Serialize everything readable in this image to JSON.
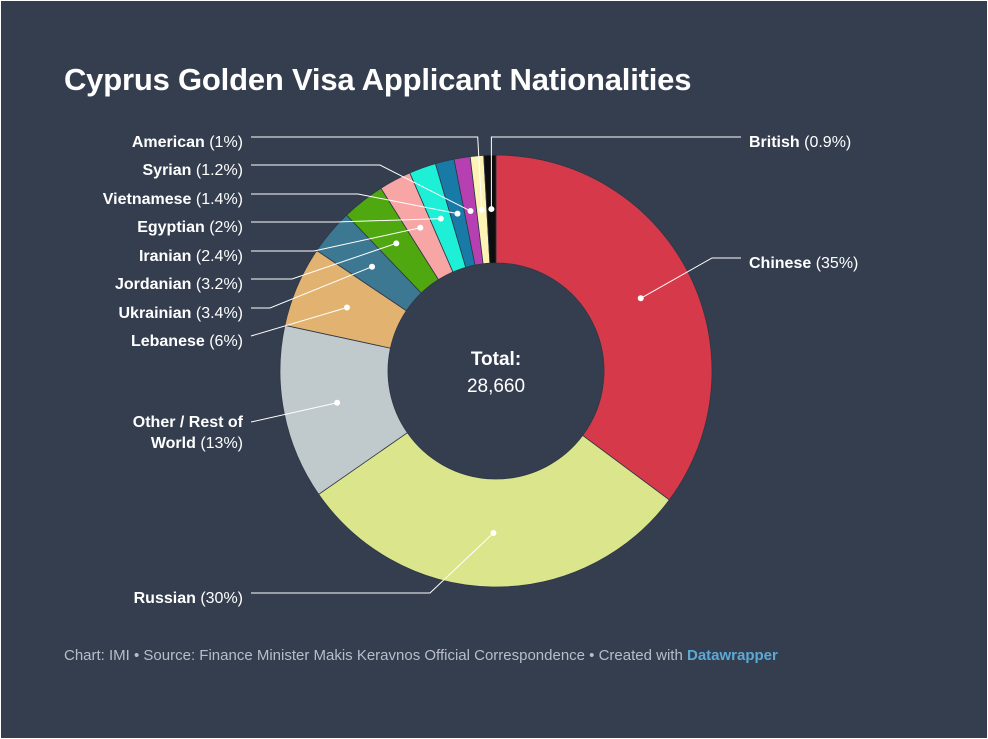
{
  "title": "Cyprus Golden Visa Applicant Nationalities",
  "center": {
    "label": "Total:",
    "value": "28,660"
  },
  "footer": {
    "text": "Chart: IMI • Source: Finance Minister Makis Keravnos Official Correspondence • Created with ",
    "brand": "Datawrapper"
  },
  "chart_data": {
    "type": "pie",
    "variant": "donut",
    "total": 28660,
    "unit": "%",
    "slices": [
      {
        "name": "Chinese",
        "value": 35,
        "label_value": "(35%)",
        "color": "#d63a4a"
      },
      {
        "name": "Russian",
        "value": 30,
        "label_value": "(30%)",
        "color": "#dae58c"
      },
      {
        "name": "Other / Rest of World",
        "name_lines": [
          "Other / Rest of",
          "World"
        ],
        "value": 13,
        "label_value": "(13%)",
        "color": "#c0c9cc"
      },
      {
        "name": "Lebanese",
        "value": 6,
        "label_value": "(6%)",
        "color": "#e2b271"
      },
      {
        "name": "Ukrainian",
        "value": 3.4,
        "label_value": "(3.4%)",
        "color": "#3d7893"
      },
      {
        "name": "Jordanian",
        "value": 3.2,
        "label_value": "(3.2%)",
        "color": "#4fa80f"
      },
      {
        "name": "Iranian",
        "value": 2.4,
        "label_value": "(2.4%)",
        "color": "#f7a5a5"
      },
      {
        "name": "Egyptian",
        "value": 2,
        "label_value": "(2%)",
        "color": "#1df0d6"
      },
      {
        "name": "Vietnamese",
        "value": 1.4,
        "label_value": "(1.4%)",
        "color": "#187aa6"
      },
      {
        "name": "Syrian",
        "value": 1.2,
        "label_value": "(1.2%)",
        "color": "#b640b2"
      },
      {
        "name": "American",
        "value": 1,
        "label_value": "(1%)",
        "color": "#fcf3b4"
      },
      {
        "name": "British",
        "value": 0.9,
        "label_value": "(0.9%)",
        "color": "#0d0d0d"
      }
    ]
  }
}
